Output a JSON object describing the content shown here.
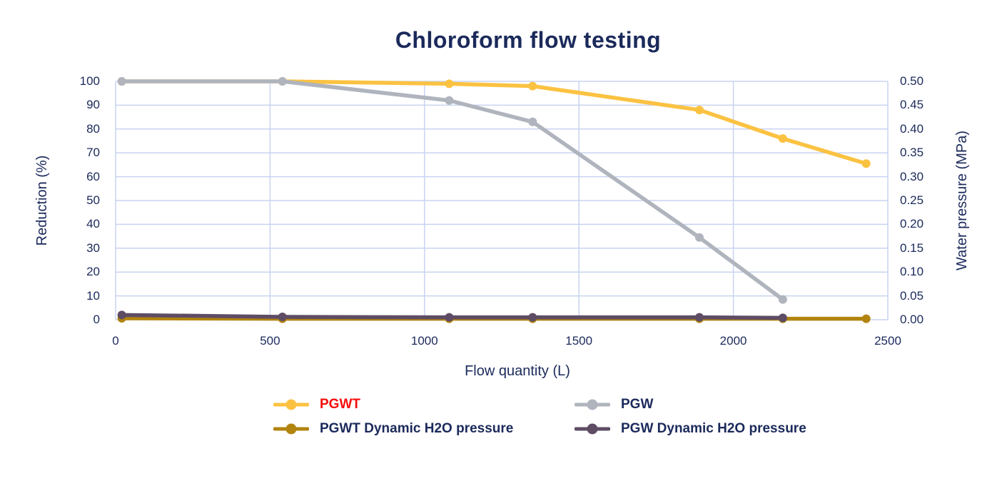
{
  "chart": {
    "colors": {
      "text_navy": "#1B2A5B",
      "grid": "#C8D3F0",
      "pgwt_yellow": "#FBC242",
      "pgw_gray": "#AFB4BD",
      "pgwt_pressure_olive": "#B2840F",
      "pgw_pressure_purple": "#5E4C64",
      "pgwt_legend_red": "#F60B0B",
      "background": "#FFFFFF"
    }
  },
  "chart_data": {
    "type": "line",
    "title": "Chloroform flow testing",
    "xlabel": "Flow quantity (L)",
    "ylabel_left": "Reduction (%)",
    "ylabel_right": "Water pressure (MPa)",
    "xlim": [
      0,
      2500
    ],
    "x_ticks": [
      "0",
      "500",
      "1000",
      "1500",
      "2000",
      "2500"
    ],
    "ylim_left": [
      0,
      100
    ],
    "left_ticks": [
      "0",
      "10",
      "20",
      "30",
      "40",
      "50",
      "60",
      "70",
      "80",
      "90",
      "100"
    ],
    "ylim_right": [
      0,
      0.5
    ],
    "right_ticks": [
      "0.00",
      "0.05",
      "0.10",
      "0.15",
      "0.20",
      "0.25",
      "0.30",
      "0.35",
      "0.40",
      "0.45",
      "0.50"
    ],
    "grid": true,
    "legend_position": "bottom",
    "series": [
      {
        "name": "PGWT",
        "axis": "left",
        "color": "#FBC242",
        "label_color": "#F60B0B",
        "x": [
          20,
          540,
          1080,
          1350,
          1890,
          2160,
          2430
        ],
        "y": [
          100,
          100,
          99,
          98,
          88,
          76,
          65.5
        ]
      },
      {
        "name": "PGW",
        "axis": "left",
        "color": "#AFB4BD",
        "label_color": "#1B2A5B",
        "x": [
          20,
          540,
          1080,
          1350,
          1890,
          2160
        ],
        "y": [
          100,
          100,
          92,
          83,
          34.5,
          8.5
        ]
      },
      {
        "name": "PGWT Dynamic H2O pressure",
        "axis": "right",
        "color": "#B2840F",
        "label_color": "#1B2A5B",
        "x": [
          20,
          540,
          1080,
          1350,
          1890,
          2160,
          2430
        ],
        "y": [
          0.003,
          0.002,
          0.002,
          0.002,
          0.002,
          0.002,
          0.002
        ]
      },
      {
        "name": "PGW Dynamic H2O pressure",
        "axis": "right",
        "color": "#5E4C64",
        "label_color": "#1B2A5B",
        "x": [
          20,
          540,
          1080,
          1350,
          1890,
          2160
        ],
        "y": [
          0.01,
          0.006,
          0.005,
          0.005,
          0.005,
          0.004
        ]
      }
    ]
  }
}
